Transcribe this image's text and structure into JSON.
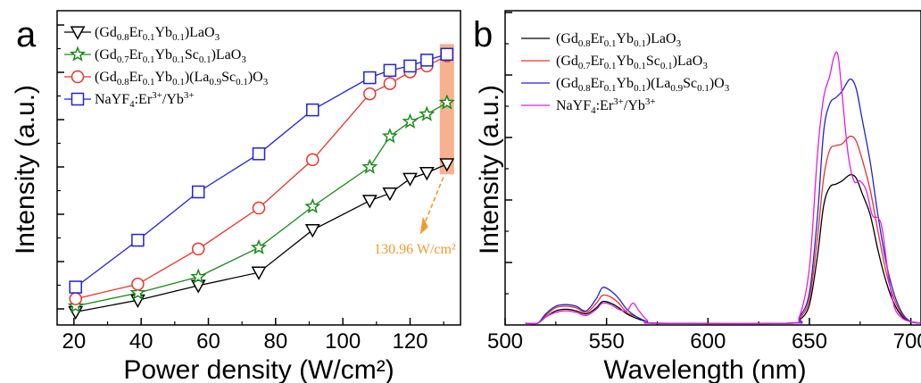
{
  "chart_data": [
    {
      "type": "line",
      "panel_label": "a",
      "xlabel": "Power density (W/cm²)",
      "ylabel": "Intensity (a.u.)",
      "xlim": [
        15,
        135
      ],
      "ylim": [
        0,
        100
      ],
      "xticks": [
        "20",
        "40",
        "60",
        "80",
        "100",
        "120"
      ],
      "grid": false,
      "legend_position": "top-left",
      "annotation": {
        "text": "130.96 W/cm²",
        "x": 130.96,
        "highlight_color": "#f4a37a"
      },
      "series": [
        {
          "name": "(Gd0.8Er0.1Yb0.1)LaO3",
          "marker": "triangle-down",
          "color": "#000000",
          "x": [
            20.5,
            39,
            57,
            75,
            91,
            108,
            114,
            120,
            125,
            130.96
          ],
          "y": [
            2,
            6,
            11,
            15.5,
            30,
            40,
            42.5,
            47.5,
            49.5,
            52.5
          ]
        },
        {
          "name": "(Gd0.7Er0.1Yb0.1Sc0.1)LaO3",
          "marker": "star",
          "color": "#1a8a1a",
          "x": [
            20.5,
            39,
            57,
            75,
            91,
            108,
            114,
            120,
            125,
            130.96
          ],
          "y": [
            4,
            8.5,
            14,
            24,
            38,
            51.5,
            62,
            67,
            69.5,
            73.5
          ]
        },
        {
          "name": "(Gd0.8Er0.1Yb0.1)(La0.9Sc0.1)O3",
          "marker": "circle",
          "color": "#e8332b",
          "x": [
            20.5,
            39,
            57,
            75,
            91,
            108,
            114,
            120,
            125,
            130.96
          ],
          "y": [
            6.5,
            11.5,
            23.5,
            37.5,
            54,
            76.5,
            80,
            84,
            86,
            89.5
          ]
        },
        {
          "name": "NaYF4:Er3+/Yb3+",
          "marker": "square",
          "color": "#2222d6",
          "x": [
            20.5,
            39,
            57,
            75,
            91,
            108,
            114,
            120,
            125,
            130.96
          ],
          "y": [
            10.5,
            26.5,
            43,
            56,
            71,
            82,
            84.5,
            86,
            88,
            90
          ]
        }
      ]
    },
    {
      "type": "line",
      "panel_label": "b",
      "xlabel": "Wavelength (nm)",
      "ylabel": "Intensity (a.u.)",
      "xlim": [
        500,
        705
      ],
      "ylim": [
        0,
        100
      ],
      "xticks": [
        "500",
        "550",
        "600",
        "650",
        "700"
      ],
      "grid": false,
      "legend_position": "top-left",
      "series": [
        {
          "name": "(Gd0.8Er0.1Yb0.1)LaO3",
          "color": "#000000",
          "x": [
            510,
            516,
            520,
            525,
            530,
            535,
            540,
            545,
            548,
            552,
            556,
            560,
            565,
            570,
            575,
            640,
            645,
            650,
            654,
            657,
            660,
            663,
            666,
            670,
            673,
            676,
            680,
            684,
            688,
            692,
            696,
            700,
            705
          ],
          "y": [
            0,
            0,
            2,
            4,
            4.5,
            4,
            3,
            5,
            7,
            6.5,
            5,
            3,
            1.5,
            0.5,
            0,
            0,
            1,
            6,
            22,
            38,
            44,
            45,
            46,
            48,
            47,
            42,
            35,
            23,
            13,
            6,
            2,
            0.5,
            0
          ]
        },
        {
          "name": "(Gd0.7Er0.1Yb0.1Sc0.1)LaO3",
          "color": "#e8332b",
          "x": [
            510,
            516,
            520,
            525,
            530,
            535,
            540,
            545,
            548,
            552,
            556,
            560,
            565,
            570,
            575,
            640,
            645,
            650,
            654,
            657,
            660,
            663,
            666,
            670,
            673,
            676,
            680,
            684,
            688,
            692,
            696,
            700,
            705
          ],
          "y": [
            0,
            0,
            2.5,
            5,
            5.5,
            5,
            3.5,
            6.5,
            9,
            8.5,
            6.5,
            3.5,
            2,
            0.5,
            0,
            0,
            1.5,
            8,
            28,
            47,
            56,
            57.5,
            58,
            60.5,
            59,
            53,
            43,
            29,
            16,
            7.5,
            2.5,
            0.5,
            0
          ]
        },
        {
          "name": "(Gd0.8Er0.1Yb0.1)(La0.9Sc0.1)O3",
          "color": "#2222d6",
          "x": [
            510,
            516,
            520,
            525,
            530,
            535,
            540,
            545,
            548,
            552,
            556,
            560,
            565,
            570,
            575,
            640,
            645,
            650,
            654,
            657,
            660,
            663,
            666,
            670,
            673,
            676,
            680,
            684,
            688,
            692,
            696,
            700,
            705
          ],
          "y": [
            0,
            0,
            3,
            5.5,
            6,
            5.5,
            4,
            8,
            11.5,
            10.5,
            8,
            4.5,
            2,
            0.5,
            0,
            0,
            2,
            10,
            35,
            62,
            71,
            73,
            75,
            79,
            76,
            66,
            52,
            34,
            19,
            9,
            3,
            0.5,
            0
          ]
        },
        {
          "name": "NaYF4:Er3+/Yb3+",
          "color": "#e11ee1",
          "x": [
            510,
            516,
            520,
            525,
            530,
            535,
            540,
            545,
            548,
            552,
            556,
            560,
            563,
            566,
            570,
            575,
            640,
            645,
            650,
            654,
            657,
            660,
            662,
            664,
            666,
            669,
            672,
            675,
            678,
            681,
            684,
            686,
            689,
            692,
            696,
            700,
            705
          ],
          "y": [
            0,
            0,
            2,
            3.5,
            4,
            3.5,
            2.5,
            4.5,
            6.5,
            6,
            4.5,
            4,
            6.5,
            4,
            1,
            0,
            0,
            2,
            18,
            55,
            73,
            80,
            86,
            87,
            75,
            55,
            46,
            46,
            43,
            35,
            34,
            30,
            15,
            5,
            1.5,
            0.5,
            0
          ]
        }
      ]
    }
  ],
  "legend_a": [
    {
      "pre": "(Gd",
      "s1": "0.8",
      "m1": "Er",
      "s2": "0.1",
      "m2": "Yb",
      "s3": "0.1",
      "post": ")LaO",
      "s4": "3"
    },
    {
      "pre": "(Gd",
      "s1": "0.7",
      "m1": "Er",
      "s2": "0.1",
      "m2": "Yb",
      "s3": "0.1",
      "m3": "Sc",
      "s5": "0.1",
      "post": ")LaO",
      "s4": "3"
    },
    {
      "pre": "(Gd",
      "s1": "0.8",
      "m1": "Er",
      "s2": "0.1",
      "m2": "Yb",
      "s3": "0.1",
      "post": ")(La",
      "s6": "0.9",
      "m4": "Sc",
      "s7": "0.1",
      "post2": ")O",
      "s4": "3"
    },
    {
      "pre": "NaYF",
      "s1": "4",
      "post": ":Er",
      "sup1": "3+",
      "post2": "/Yb",
      "sup2": "3+"
    }
  ]
}
